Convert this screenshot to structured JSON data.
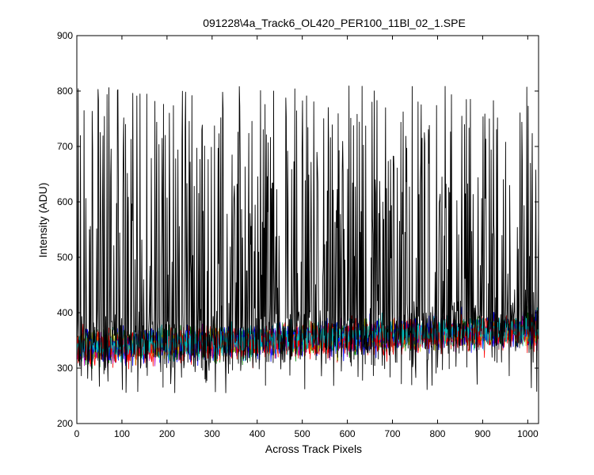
{
  "chart_data": {
    "type": "line",
    "title": "091228\\4a_Track6_OL420_PER100_11Bl_02_1.SPE",
    "xlabel": "Across Track Pixels",
    "ylabel": "Intensity (ADU)",
    "xlim": [
      0,
      1024
    ],
    "ylim": [
      200,
      900
    ],
    "xticks": [
      0,
      100,
      200,
      300,
      400,
      500,
      600,
      700,
      800,
      900,
      1000
    ],
    "yticks": [
      200,
      300,
      400,
      500,
      600,
      700,
      800,
      900
    ],
    "grid": false,
    "legend": "none",
    "n_points": 1024,
    "colors": {
      "background": "#ffffff",
      "axes": "#000000",
      "series_colors": [
        "#0000ff",
        "#008000",
        "#ff0000",
        "#00bfbf",
        "#bf00bf",
        "#bfbf00",
        "#404040",
        "#000000"
      ]
    },
    "series": [
      {
        "color": "#0000ff",
        "description": "noise band",
        "baseline_start": 335,
        "baseline_end": 370,
        "noise_amplitude": 14,
        "seed": 11,
        "spikes": false
      },
      {
        "color": "#008000",
        "description": "noise band",
        "baseline_start": 336,
        "baseline_end": 368,
        "noise_amplitude": 14,
        "seed": 23,
        "spikes": false
      },
      {
        "color": "#ff0000",
        "description": "noise band",
        "baseline_start": 334,
        "baseline_end": 367,
        "noise_amplitude": 15,
        "seed": 37,
        "spikes": false
      },
      {
        "color": "#00bfbf",
        "description": "noise band",
        "baseline_start": 338,
        "baseline_end": 371,
        "noise_amplitude": 13,
        "seed": 41,
        "spikes": false
      },
      {
        "color": "#bf00bf",
        "description": "noise band",
        "baseline_start": 335,
        "baseline_end": 369,
        "noise_amplitude": 13,
        "seed": 53,
        "spikes": false
      },
      {
        "color": "#bfbf00",
        "description": "noise band",
        "baseline_start": 337,
        "baseline_end": 370,
        "noise_amplitude": 12,
        "seed": 67,
        "spikes": false
      },
      {
        "color": "#404040",
        "description": "noise band",
        "baseline_start": 336,
        "baseline_end": 368,
        "noise_amplitude": 12,
        "seed": 79,
        "spikes": false
      },
      {
        "color": "#0000ff",
        "description": "noise band",
        "baseline_start": 337,
        "baseline_end": 372,
        "noise_amplitude": 13,
        "seed": 83,
        "spikes": false
      },
      {
        "color": "#ff0000",
        "description": "noise band",
        "baseline_start": 336,
        "baseline_end": 369,
        "noise_amplitude": 14,
        "seed": 97,
        "spikes": false
      },
      {
        "color": "#00bfbf",
        "description": "noise band",
        "baseline_start": 338,
        "baseline_end": 373,
        "noise_amplitude": 12,
        "seed": 101,
        "spikes": false
      },
      {
        "color": "#000000",
        "description": "spiky trace",
        "baseline_start": 345,
        "baseline_end": 375,
        "noise_amplitude": 30,
        "seed": 7,
        "spikes": true,
        "spike_min": 450,
        "spike_max": 810,
        "dip_min": 255,
        "dip_max": 320
      }
    ]
  }
}
